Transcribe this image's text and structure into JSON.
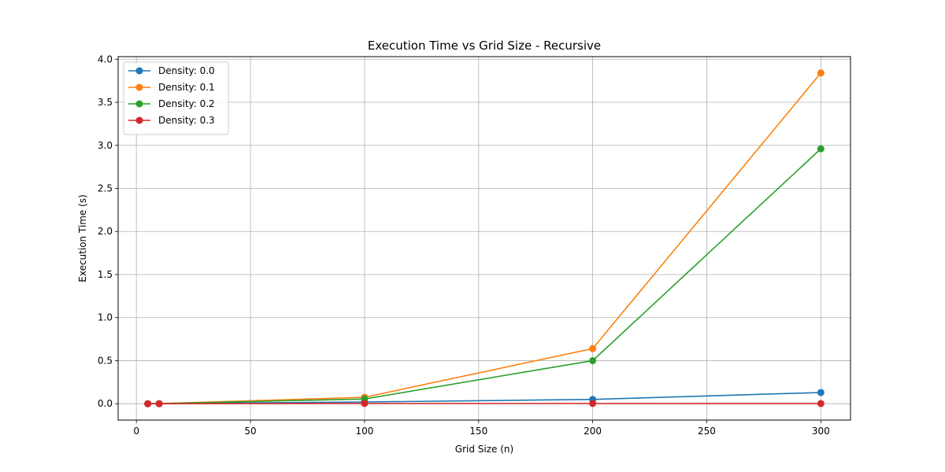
{
  "chart_data": {
    "type": "line",
    "title": "Execution Time vs Grid Size - Recursive",
    "xlabel": "Grid Size (n)",
    "ylabel": "Execution Time (s)",
    "xlim": [
      -8,
      313
    ],
    "ylim": [
      -0.19,
      4.03
    ],
    "xticks": [
      0,
      50,
      100,
      150,
      200,
      250,
      300
    ],
    "yticks": [
      0.0,
      0.5,
      1.0,
      1.5,
      2.0,
      2.5,
      3.0,
      3.5,
      4.0
    ],
    "grid": true,
    "legend_position": "top-left",
    "markers": "circle",
    "x": [
      5,
      10,
      100,
      200,
      300
    ],
    "series": [
      {
        "name": "Density: 0.0",
        "color": "#1f77b4",
        "values": [
          0.0,
          0.001,
          0.02,
          0.05,
          0.13
        ]
      },
      {
        "name": "Density: 0.1",
        "color": "#ff7f0e",
        "values": [
          0.0,
          0.001,
          0.075,
          0.64,
          3.84
        ]
      },
      {
        "name": "Density: 0.2",
        "color": "#2ca02c",
        "values": [
          0.0,
          0.001,
          0.055,
          0.5,
          2.96
        ]
      },
      {
        "name": "Density: 0.3",
        "color": "#d62728",
        "values": [
          0.0,
          0.0,
          0.003,
          0.003,
          0.002
        ]
      }
    ]
  }
}
